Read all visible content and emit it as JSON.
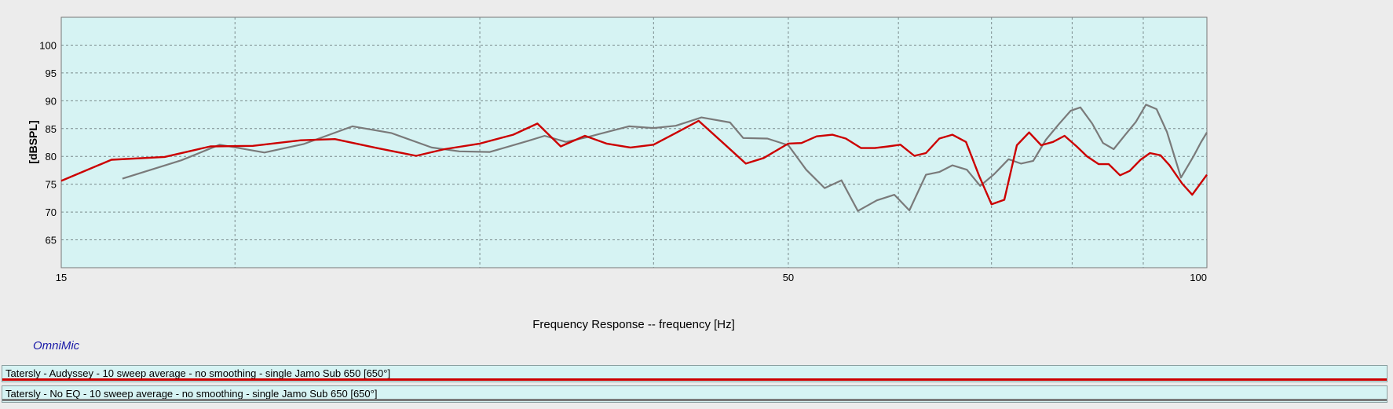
{
  "colors": {
    "plot_background": "#d6f3f3",
    "grid": "#7a8a8c",
    "series_audyssey": "#cc0000",
    "series_no_eq": "#7a7a7a"
  },
  "brand": "OmniMic",
  "chart_data": {
    "type": "line",
    "title": "",
    "xlabel": "Frequency Response -- frequency [Hz]",
    "ylabel": "[dBSPL]",
    "x_scale": "log",
    "xlim": [
      15,
      100
    ],
    "ylim": [
      60,
      105
    ],
    "x_tick_labels": [
      "15",
      "50",
      "100"
    ],
    "y_ticks": [
      65,
      70,
      75,
      80,
      85,
      90,
      95,
      100
    ],
    "grid": true,
    "legend_placement": "bottom",
    "series": [
      {
        "name": "Tatersly - Audyssey - 10 sweep average - no smoothing - single Jamo Sub 650 [650°]",
        "color": "#cc0000",
        "points": [
          [
            15,
            75.6
          ],
          [
            16.3,
            79.4
          ],
          [
            17.8,
            79.9
          ],
          [
            19.2,
            81.8
          ],
          [
            20.6,
            81.9
          ],
          [
            22.3,
            82.9
          ],
          [
            23.6,
            83.1
          ],
          [
            25.3,
            81.5
          ],
          [
            27.0,
            80.1
          ],
          [
            28.3,
            81.3
          ],
          [
            30.0,
            82.3
          ],
          [
            31.7,
            83.9
          ],
          [
            33.0,
            85.9
          ],
          [
            34.3,
            81.8
          ],
          [
            35.7,
            83.7
          ],
          [
            37.0,
            82.3
          ],
          [
            38.5,
            81.6
          ],
          [
            40.0,
            82.1
          ],
          [
            41.5,
            84.2
          ],
          [
            43.1,
            86.4
          ],
          [
            44.8,
            82.6
          ],
          [
            46.6,
            78.7
          ],
          [
            48.0,
            79.7
          ],
          [
            50.0,
            82.3
          ],
          [
            51.1,
            82.4
          ],
          [
            52.4,
            83.6
          ],
          [
            53.8,
            83.9
          ],
          [
            55.0,
            83.2
          ],
          [
            56.4,
            81.5
          ],
          [
            57.7,
            81.5
          ],
          [
            59.0,
            81.8
          ],
          [
            60.2,
            82.1
          ],
          [
            61.6,
            80.1
          ],
          [
            62.8,
            80.6
          ],
          [
            64.2,
            83.2
          ],
          [
            65.6,
            83.9
          ],
          [
            67.1,
            82.6
          ],
          [
            68.6,
            76.4
          ],
          [
            70.0,
            71.4
          ],
          [
            71.5,
            72.2
          ],
          [
            73.0,
            82.0
          ],
          [
            74.5,
            84.3
          ],
          [
            76.0,
            82.0
          ],
          [
            77.5,
            82.6
          ],
          [
            79.0,
            83.7
          ],
          [
            80.6,
            81.8
          ],
          [
            82.0,
            80.0
          ],
          [
            83.6,
            78.6
          ],
          [
            85.0,
            78.6
          ],
          [
            86.6,
            76.6
          ],
          [
            88.0,
            77.4
          ],
          [
            89.6,
            79.4
          ],
          [
            91.0,
            80.6
          ],
          [
            92.6,
            80.2
          ],
          [
            94.0,
            78.4
          ],
          [
            96.0,
            75.1
          ],
          [
            97.6,
            73.1
          ],
          [
            100,
            76.7
          ]
        ]
      },
      {
        "name": "Tatersly - No EQ - 10 sweep average - no smoothing - single Jamo Sub 650 [650°]",
        "color": "#7a7a7a",
        "points": [
          [
            16.6,
            76.0
          ],
          [
            18.3,
            79.3
          ],
          [
            19.5,
            82.1
          ],
          [
            21.0,
            80.7
          ],
          [
            22.4,
            82.2
          ],
          [
            24.3,
            85.4
          ],
          [
            25.9,
            84.2
          ],
          [
            27.7,
            81.6
          ],
          [
            29.0,
            80.9
          ],
          [
            30.5,
            80.8
          ],
          [
            32.5,
            82.8
          ],
          [
            33.4,
            83.7
          ],
          [
            34.6,
            82.6
          ],
          [
            35.9,
            83.5
          ],
          [
            38.4,
            85.4
          ],
          [
            40.0,
            85.1
          ],
          [
            41.5,
            85.5
          ],
          [
            43.3,
            87.0
          ],
          [
            45.4,
            86.1
          ],
          [
            46.4,
            83.3
          ],
          [
            48.3,
            83.2
          ],
          [
            50.0,
            82.0
          ],
          [
            51.5,
            77.6
          ],
          [
            53.1,
            74.3
          ],
          [
            54.6,
            75.7
          ],
          [
            56.1,
            70.2
          ],
          [
            57.9,
            72.1
          ],
          [
            59.6,
            73.1
          ],
          [
            61.1,
            70.3
          ],
          [
            62.8,
            76.7
          ],
          [
            64.2,
            77.2
          ],
          [
            65.6,
            78.4
          ],
          [
            67.2,
            77.6
          ],
          [
            68.7,
            74.7
          ],
          [
            70.3,
            76.8
          ],
          [
            72.0,
            79.5
          ],
          [
            73.5,
            78.7
          ],
          [
            75.0,
            79.2
          ],
          [
            76.6,
            83.0
          ],
          [
            78.2,
            85.7
          ],
          [
            79.8,
            88.2
          ],
          [
            81.1,
            88.8
          ],
          [
            82.7,
            85.9
          ],
          [
            84.2,
            82.4
          ],
          [
            85.7,
            81.3
          ],
          [
            87.3,
            83.8
          ],
          [
            88.9,
            86.2
          ],
          [
            90.4,
            89.3
          ],
          [
            92.0,
            88.5
          ],
          [
            93.6,
            84.4
          ],
          [
            95.8,
            76.2
          ],
          [
            97.8,
            80.0
          ],
          [
            99.0,
            82.5
          ],
          [
            100,
            84.3
          ]
        ]
      }
    ]
  }
}
